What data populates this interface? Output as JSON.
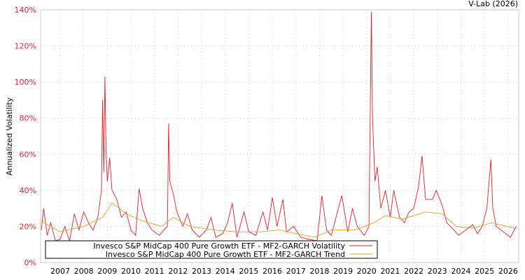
{
  "chart_data": {
    "type": "line",
    "title": "V-Lab (2026)",
    "ylabel": "Annualized Volatility",
    "xlabel": "",
    "ylim": [
      0,
      140
    ],
    "xlim": [
      2006.17,
      2026.45
    ],
    "yticks": [
      "0%",
      "20%",
      "40%",
      "60%",
      "80%",
      "100%",
      "120%",
      "140%"
    ],
    "ytick_values": [
      0,
      20,
      40,
      60,
      80,
      100,
      120,
      140
    ],
    "xticks": [
      "2007",
      "2008",
      "2009",
      "2010",
      "2011",
      "2012",
      "2013",
      "2014",
      "2015",
      "2016",
      "2017",
      "2018",
      "2019",
      "2020",
      "2021",
      "2022",
      "2023",
      "2024",
      "2025",
      "2026"
    ],
    "grid": true,
    "legend_position": "bottom-left",
    "series": [
      {
        "name": "Invesco S&P MidCap 400 Pure Growth ETF - MF2-GARCH Volatility",
        "color": "#e0202e",
        "x": [
          2006.2,
          2006.3,
          2006.45,
          2006.6,
          2006.8,
          2007.0,
          2007.2,
          2007.4,
          2007.6,
          2007.8,
          2008.0,
          2008.2,
          2008.4,
          2008.6,
          2008.75,
          2008.8,
          2008.85,
          2008.9,
          2008.95,
          2009.0,
          2009.1,
          2009.2,
          2009.4,
          2009.6,
          2009.8,
          2010.0,
          2010.2,
          2010.35,
          2010.5,
          2010.7,
          2010.9,
          2011.2,
          2011.4,
          2011.55,
          2011.6,
          2011.65,
          2011.8,
          2011.95,
          2012.2,
          2012.4,
          2012.6,
          2012.9,
          2013.2,
          2013.4,
          2013.6,
          2013.9,
          2014.1,
          2014.3,
          2014.5,
          2014.8,
          2015.0,
          2015.3,
          2015.6,
          2015.8,
          2016.0,
          2016.2,
          2016.45,
          2016.6,
          2016.9,
          2017.2,
          2017.5,
          2017.9,
          2018.1,
          2018.3,
          2018.5,
          2018.8,
          2018.95,
          2019.2,
          2019.4,
          2019.6,
          2019.9,
          2020.1,
          2020.2,
          2020.25,
          2020.35,
          2020.45,
          2020.6,
          2020.8,
          2021.0,
          2021.15,
          2021.4,
          2021.6,
          2021.8,
          2022.0,
          2022.2,
          2022.35,
          2022.5,
          2022.8,
          2022.95,
          2023.2,
          2023.4,
          2023.7,
          2023.9,
          2024.2,
          2024.5,
          2024.7,
          2024.9,
          2025.1,
          2025.27,
          2025.35,
          2025.5,
          2025.8,
          2026.1,
          2026.35
        ],
        "values": [
          18,
          30,
          15,
          22,
          12,
          13,
          20,
          12,
          27,
          18,
          28,
          22,
          18,
          25,
          40,
          90,
          50,
          103,
          60,
          45,
          58,
          40,
          35,
          25,
          28,
          18,
          15,
          41,
          30,
          22,
          18,
          15,
          18,
          20,
          77,
          45,
          38,
          28,
          20,
          27,
          18,
          14,
          18,
          25,
          14,
          16,
          22,
          33,
          14,
          28,
          17,
          15,
          28,
          18,
          36,
          20,
          35,
          17,
          20,
          14,
          13,
          12,
          37,
          18,
          15,
          30,
          37,
          17,
          30,
          20,
          15,
          20,
          139,
          80,
          45,
          53,
          30,
          40,
          25,
          40,
          25,
          22,
          28,
          30,
          42,
          59,
          35,
          35,
          40,
          32,
          22,
          18,
          15,
          18,
          21,
          16,
          20,
          30,
          57,
          30,
          20,
          17,
          14,
          20
        ]
      },
      {
        "name": "Invesco S&P MidCap 400 Pure Growth ETF - MF2-GARCH Trend",
        "color": "#d4a531",
        "x": [
          2006.2,
          2007.0,
          2008.0,
          2008.8,
          2009.2,
          2009.8,
          2010.5,
          2011.3,
          2011.8,
          2012.5,
          2013.5,
          2014.5,
          2015.5,
          2016.3,
          2017.0,
          2017.8,
          2018.5,
          2019.5,
          2020.3,
          2020.8,
          2021.5,
          2022.5,
          2023.2,
          2023.8,
          2024.5,
          2025.3,
          2026.3
        ],
        "values": [
          23,
          17,
          20,
          25,
          33,
          27,
          23,
          20,
          25,
          20,
          18,
          17,
          17,
          18,
          16,
          14,
          18,
          18,
          22,
          26,
          24,
          28,
          27,
          20,
          19,
          22,
          19
        ]
      }
    ]
  }
}
